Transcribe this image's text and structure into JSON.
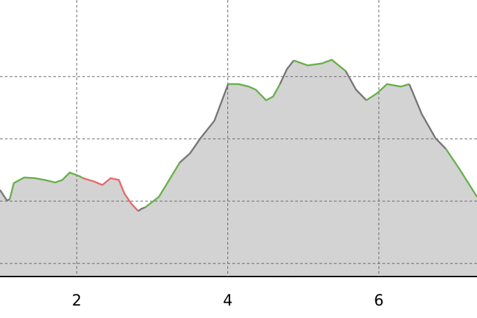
{
  "chart_data": {
    "type": "area",
    "xlim": [
      0.984,
      7.3
    ],
    "ylim": [
      -0.21,
      4.23
    ],
    "xticks": [
      2,
      4,
      6
    ],
    "ygrid": [
      0,
      1,
      2,
      3
    ],
    "grid": true,
    "fill_color": "#d3d3d3",
    "series": [
      {
        "color": "#777777",
        "x": [
          0.984,
          1.076,
          1.112
        ],
        "values": [
          1.18,
          1.01,
          1.03
        ]
      },
      {
        "color": "#6ab04c",
        "x": [
          1.112,
          1.167,
          1.304,
          1.442,
          1.579,
          1.716,
          1.808,
          1.908,
          2.037,
          2.082
        ],
        "values": [
          1.03,
          1.29,
          1.38,
          1.37,
          1.34,
          1.3,
          1.34,
          1.46,
          1.4,
          1.37
        ]
      },
      {
        "color": "#e86a6a",
        "x": [
          2.082,
          2.22,
          2.339,
          2.449,
          2.558,
          2.632,
          2.723,
          2.815
        ],
        "values": [
          1.37,
          1.32,
          1.26,
          1.37,
          1.34,
          1.12,
          0.96,
          0.84
        ]
      },
      {
        "color": "#777777",
        "x": [
          2.815,
          2.86,
          2.906
        ],
        "values": [
          0.84,
          0.88,
          0.9
        ]
      },
      {
        "color": "#6ab04c",
        "x": [
          2.906,
          3.089,
          3.364
        ],
        "values": [
          0.9,
          1.07,
          1.62
        ]
      },
      {
        "color": "#777777",
        "x": [
          3.364,
          3.501,
          3.638,
          3.822,
          4.005
        ],
        "values": [
          1.62,
          1.77,
          2.01,
          2.29,
          2.88
        ]
      },
      {
        "color": "#6ab04c",
        "x": [
          4.005,
          4.142,
          4.279,
          4.371,
          4.508,
          4.6,
          4.691
        ],
        "values": [
          2.88,
          2.88,
          2.84,
          2.79,
          2.62,
          2.68,
          2.88
        ]
      },
      {
        "color": "#777777",
        "x": [
          4.691,
          4.783,
          4.874
        ],
        "values": [
          2.88,
          3.12,
          3.26
        ]
      },
      {
        "color": "#6ab04c",
        "x": [
          4.874,
          5.057,
          5.24,
          5.378,
          5.469,
          5.561
        ],
        "values": [
          3.26,
          3.18,
          3.21,
          3.27,
          3.18,
          3.09
        ]
      },
      {
        "color": "#777777",
        "x": [
          5.561,
          5.698,
          5.835
        ],
        "values": [
          3.09,
          2.79,
          2.62
        ]
      },
      {
        "color": "#6ab04c",
        "x": [
          5.835,
          5.973,
          6.11,
          6.293,
          6.403
        ],
        "values": [
          2.62,
          2.73,
          2.88,
          2.84,
          2.88
        ]
      },
      {
        "color": "#777777",
        "x": [
          6.403,
          6.568,
          6.751,
          6.888
        ],
        "values": [
          2.88,
          2.4,
          2.01,
          1.84
        ]
      },
      {
        "color": "#6ab04c",
        "x": [
          6.888,
          7.071,
          7.3
        ],
        "values": [
          1.84,
          1.51,
          1.07
        ]
      }
    ]
  }
}
